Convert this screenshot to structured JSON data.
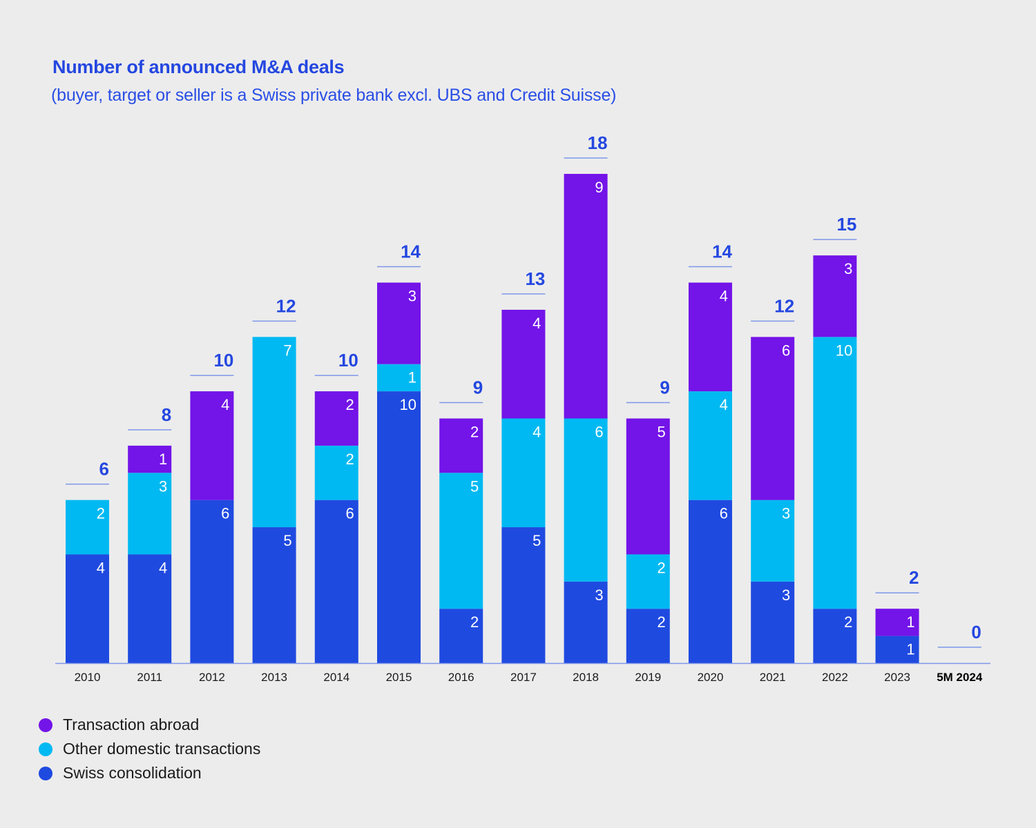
{
  "title": "Number of announced M&A deals",
  "subtitle": "(buyer, target or seller is a Swiss private bank excl. UBS and Credit Suisse)",
  "colors": {
    "swiss_consolidation": "#1f4ae0",
    "other_domestic": "#00b9f2",
    "transaction_abroad": "#7314e8",
    "total_label": "#2447e0",
    "axis": "#7d96e8"
  },
  "chart_data": {
    "type": "bar",
    "stacked": true,
    "title": "Number of announced M&A deals",
    "subtitle": "(buyer, target or seller is a Swiss private bank excl. UBS and Credit Suisse)",
    "xlabel": "",
    "ylabel": "",
    "ylim": [
      0,
      18
    ],
    "grid": false,
    "legend_position": "bottom-left",
    "categories": [
      "2010",
      "2011",
      "2012",
      "2013",
      "2014",
      "2015",
      "2016",
      "2017",
      "2018",
      "2019",
      "2020",
      "2021",
      "2022",
      "2023",
      "5M 2024"
    ],
    "bold_categories": [
      "5M 2024"
    ],
    "series": [
      {
        "name": "Swiss consolidation",
        "color": "#1f4ae0",
        "values": [
          4,
          4,
          6,
          5,
          6,
          10,
          2,
          5,
          3,
          2,
          6,
          3,
          2,
          1,
          0
        ]
      },
      {
        "name": "Other domestic transactions",
        "color": "#00b9f2",
        "values": [
          2,
          3,
          0,
          7,
          2,
          1,
          5,
          4,
          6,
          2,
          4,
          3,
          10,
          0,
          0
        ]
      },
      {
        "name": "Transaction abroad",
        "color": "#7314e8",
        "values": [
          0,
          1,
          4,
          0,
          2,
          3,
          2,
          4,
          9,
          5,
          4,
          6,
          3,
          1,
          0
        ]
      }
    ],
    "totals": [
      6,
      8,
      10,
      12,
      10,
      14,
      9,
      13,
      18,
      9,
      14,
      12,
      15,
      2,
      0
    ]
  },
  "legend": [
    {
      "label": "Transaction abroad",
      "color": "#7314e8"
    },
    {
      "label": "Other domestic transactions",
      "color": "#00b9f2"
    },
    {
      "label": "Swiss consolidation",
      "color": "#1f4ae0"
    }
  ]
}
